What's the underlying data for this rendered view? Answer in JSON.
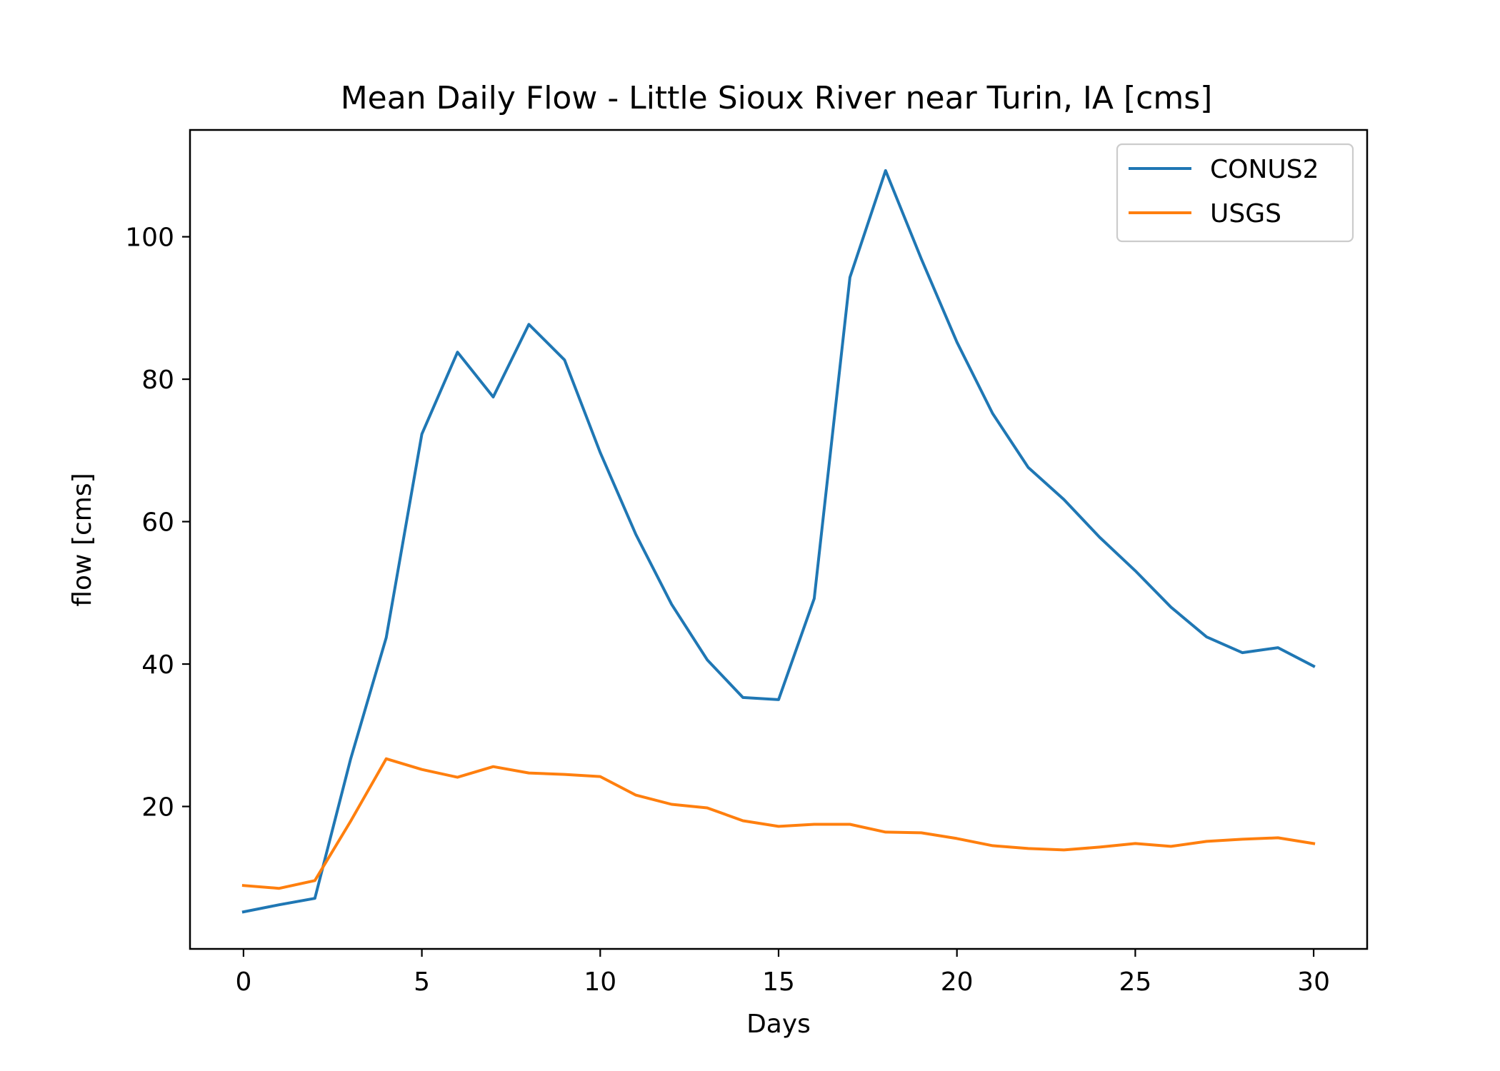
{
  "chart_data": {
    "type": "line",
    "title": "Mean Daily Flow - Little Sioux River near Turin, IA [cms]",
    "xlabel": "Days",
    "ylabel": "flow [cms]",
    "xlim": [
      -1.5,
      31.5
    ],
    "ylim": [
      0,
      115
    ],
    "xticks": [
      0,
      5,
      10,
      15,
      20,
      25,
      30
    ],
    "yticks": [
      20,
      40,
      60,
      80,
      100
    ],
    "grid": false,
    "legend": "top-right",
    "x": [
      0,
      1,
      2,
      3,
      4,
      5,
      6,
      7,
      8,
      9,
      10,
      11,
      12,
      13,
      14,
      15,
      16,
      17,
      18,
      19,
      20,
      21,
      22,
      23,
      24,
      25,
      26,
      27,
      28,
      29,
      30
    ],
    "series": [
      {
        "name": "CONUS2",
        "color": "#1f77b4",
        "values": [
          5.2,
          6.2,
          7.1,
          26.6,
          43.7,
          72.3,
          83.8,
          77.5,
          87.7,
          82.7,
          69.7,
          58.2,
          48.4,
          40.6,
          35.3,
          35.0,
          49.2,
          94.3,
          109.3,
          96.9,
          85.2,
          75.2,
          67.6,
          63.1,
          57.8,
          53.1,
          48.0,
          43.8,
          41.6,
          42.3,
          39.7
        ]
      },
      {
        "name": "USGS",
        "color": "#ff7f0e",
        "values": [
          8.9,
          8.5,
          9.6,
          17.9,
          26.7,
          25.2,
          24.1,
          25.6,
          24.7,
          24.5,
          24.2,
          21.6,
          20.3,
          19.8,
          18.0,
          17.2,
          17.5,
          17.5,
          16.4,
          16.3,
          15.5,
          14.5,
          14.1,
          13.9,
          14.3,
          14.8,
          14.4,
          15.1,
          15.4,
          15.6,
          14.8
        ]
      }
    ]
  }
}
